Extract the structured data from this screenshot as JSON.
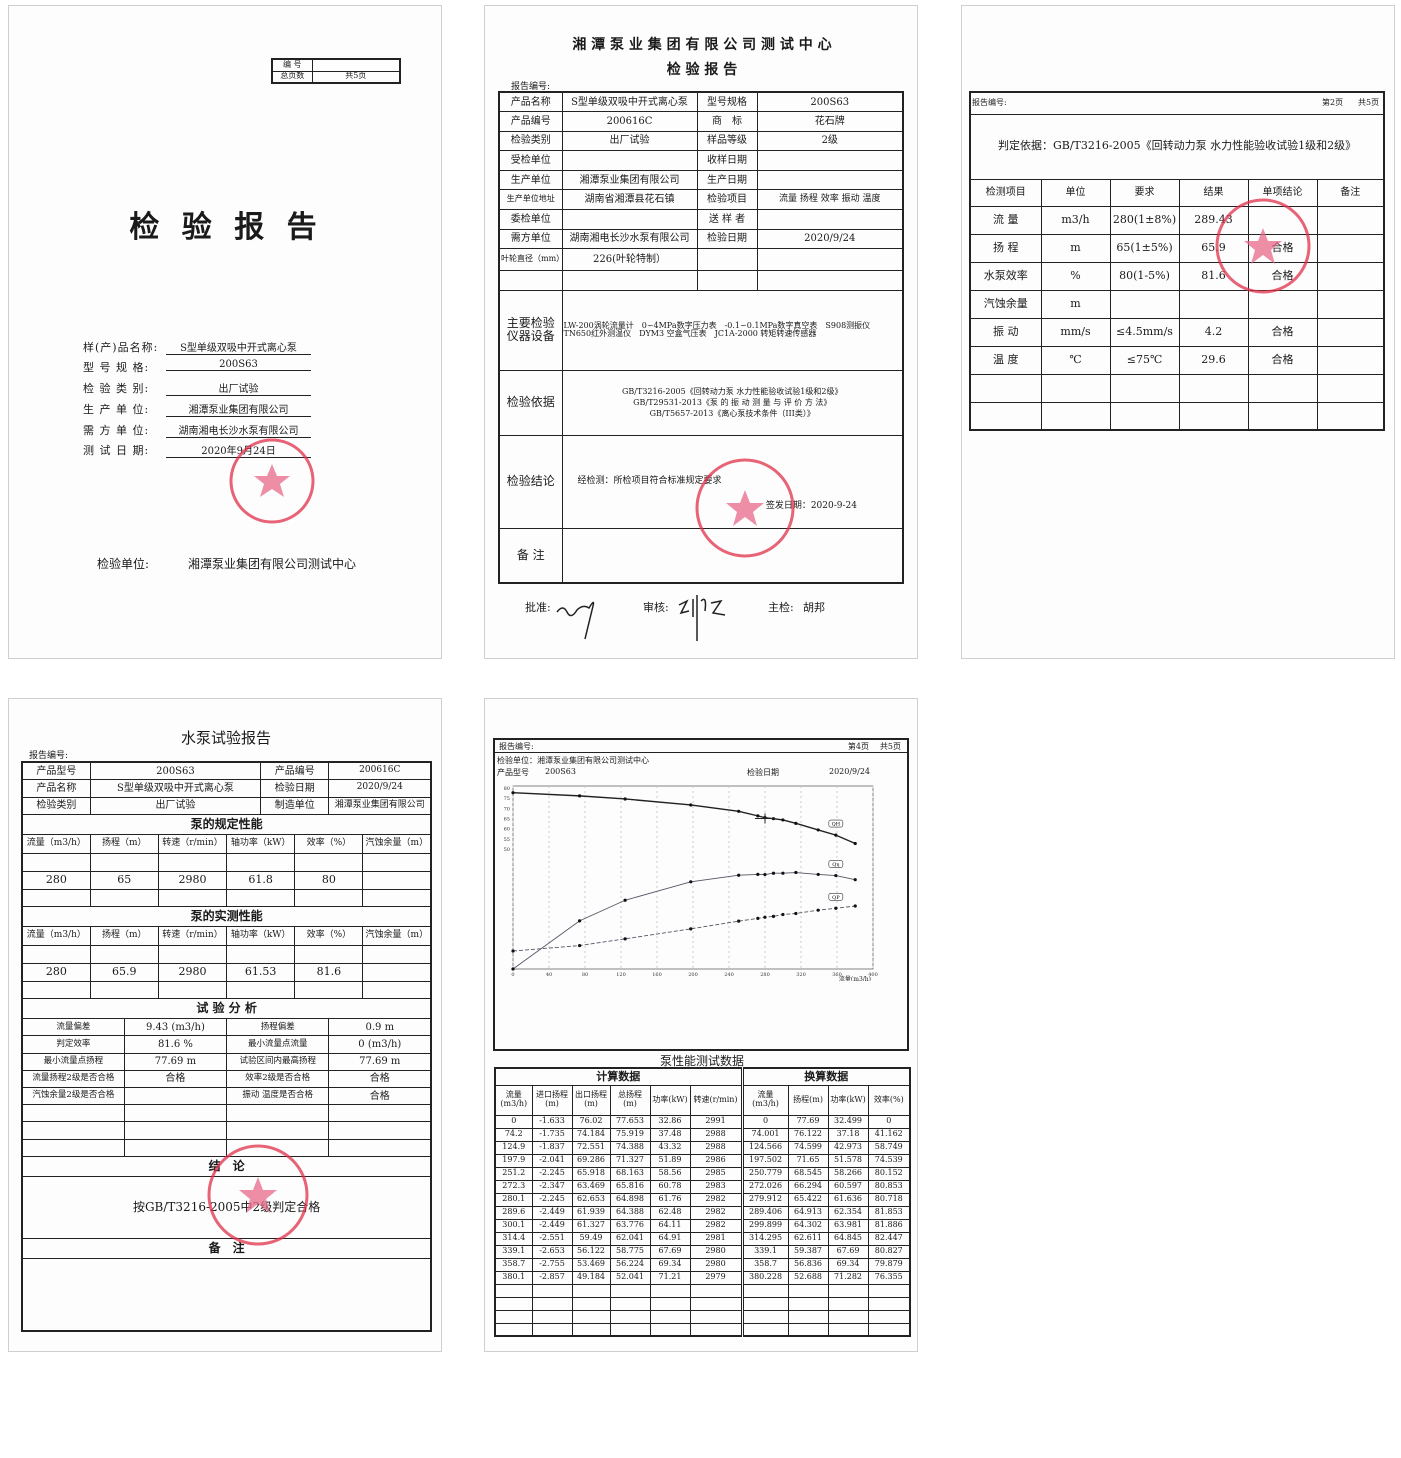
{
  "colors": {
    "stamp": "#e0304a",
    "ink": "#1a1a1a",
    "border": "#cfcfcf"
  },
  "page1": {
    "box": {
      "no_label": "编 号",
      "no_value": "",
      "pages_label": "总页数",
      "pages_value": "共5页"
    },
    "title": "检 验 报 告",
    "fields": [
      {
        "label": "样(产)品名称:",
        "value": "S型单级双吸中开式离心泵"
      },
      {
        "label": "型 号 规 格:",
        "value": "200S63"
      },
      {
        "label": "检 验 类 别:",
        "value": "出厂试验"
      },
      {
        "label": "生 产 单 位:",
        "value": "湘潭泵业集团有限公司"
      },
      {
        "label": "需 方 单 位:",
        "value": "湖南湘电长沙水泵有限公司"
      },
      {
        "label": "测 试 日 期:",
        "value": "2020年9月24日"
      }
    ],
    "unit_label": "检验单位:",
    "unit_value": "湘潭泵业集团有限公司测试中心"
  },
  "page2": {
    "header": "湘 潭 泵 业 集 团 有 限 公 司 测 试 中 心",
    "subheader": "检 验 报 告",
    "report_no_label": "报告编号:",
    "info_rows": [
      [
        "产品名称",
        "S型单级双吸中开式离心泵",
        "型号规格",
        "200S63"
      ],
      [
        "产品编号",
        "200616C",
        "商　标",
        "花石牌"
      ],
      [
        "检验类别",
        "出厂试验",
        "样品等级",
        "2级"
      ],
      [
        "受检单位",
        "",
        "收样日期",
        ""
      ],
      [
        "生产单位",
        "湘潭泵业集团有限公司",
        "生产日期",
        ""
      ],
      [
        "生产单位地址",
        "湖南省湘潭县花石镇",
        "检验项目",
        "流量 扬程 效率 振动 温度"
      ],
      [
        "委检单位",
        "",
        "送 样 者",
        ""
      ],
      [
        "需方单位",
        "湖南湘电长沙水泵有限公司",
        "检验日期",
        "2020/9/24"
      ],
      [
        "叶轮直径（mm）",
        "226(叶轮特制）",
        "",
        ""
      ],
      [
        "",
        "",
        "",
        ""
      ]
    ],
    "equipment_label": "主要检验仪器设备",
    "equipment_lines": [
      "LW-200涡轮流量计　0∽4MPa数字压力表　-0.1∽0.1MPa数字真空表　S908测振仪",
      "TN650红外测温仪　DYM3 空盒气压表　JC1A-2000 转矩转速传感器"
    ],
    "basis_label": "检验依据",
    "basis_lines": [
      "GB/T3216-2005《回转动力泵 水力性能验收试验1级和2级》",
      "GB/T29531-2013《泵 的 振 动 测 量 与 评 价 方 法》",
      "GB/T5657-2013《离心泵技术条件（III类）》"
    ],
    "conclusion_label": "检验结论",
    "conclusion_text": "经检测：所检项目符合标准规定要求",
    "issue_date": "签发日期：2020-9-24",
    "remarks_label": "备 注",
    "approve_label": "批准:",
    "review_label": "审核:",
    "inspector_label": "主检:",
    "inspector_name": "胡邦"
  },
  "page3": {
    "report_no_label": "报告编号:",
    "page_no": "第2页",
    "total_pages": "共5页",
    "basis": "判定依据：GB/T3216-2005《回转动力泵 水力性能验收试验1级和2级》",
    "headers": [
      "检测项目",
      "单位",
      "要求",
      "结果",
      "单项结论",
      "备注"
    ],
    "rows": [
      [
        "流 量",
        "m3/h",
        "280(1±8%)",
        "289.43",
        "",
        ""
      ],
      [
        "扬 程",
        "m",
        "65(1±5%)",
        "65.9",
        "合格",
        ""
      ],
      [
        "水泵效率",
        "%",
        "80(1-5%)",
        "81.6",
        "合格",
        ""
      ],
      [
        "汽蚀余量",
        "m",
        "",
        "",
        "",
        ""
      ],
      [
        "振 动",
        "mm/s",
        "≤4.5mm/s",
        "4.2",
        "合格",
        ""
      ],
      [
        "温 度",
        "℃",
        "≤75℃",
        "29.6",
        "合格",
        ""
      ],
      [
        "",
        "",
        "",
        "",
        "",
        ""
      ],
      [
        "",
        "",
        "",
        "",
        "",
        ""
      ]
    ]
  },
  "page4": {
    "title": "水泵试验报告",
    "report_no_label": "报告编号:",
    "info_rows": [
      [
        "产品型号",
        "200S63",
        "产品编号",
        "200616C"
      ],
      [
        "产品名称",
        "S型单级双吸中开式离心泵",
        "检验日期",
        "2020/9/24"
      ],
      [
        "检验类别",
        "出厂试验",
        "制造单位",
        "湘潭泵业集团有限公司"
      ]
    ],
    "rated_title": "泵的规定性能",
    "perf_headers": [
      "流量（m3/h）",
      "扬程（m）",
      "转速（r/min）",
      "轴功率（kW）",
      "效率（%）",
      "汽蚀余量（m）"
    ],
    "rated_rows": [
      [
        "",
        "",
        "",
        "",
        "",
        ""
      ],
      [
        "280",
        "65",
        "2980",
        "61.8",
        "80",
        ""
      ],
      [
        "",
        "",
        "",
        "",
        "",
        ""
      ]
    ],
    "measured_title": "泵的实测性能",
    "measured_rows": [
      [
        "",
        "",
        "",
        "",
        "",
        ""
      ],
      [
        "280",
        "65.9",
        "2980",
        "61.53",
        "81.6",
        ""
      ],
      [
        "",
        "",
        "",
        "",
        "",
        ""
      ]
    ],
    "analysis_title": "试 验 分 析",
    "analysis_rows": [
      [
        "流量偏差",
        "9.43 (m3/h)",
        "扬程偏差",
        "0.9 m"
      ],
      [
        "判定效率",
        "81.6 %",
        "最小流量点流量",
        "0 (m3/h)"
      ],
      [
        "最小流量点扬程",
        "77.69 m",
        "试验区间内最高扬程",
        "77.69 m"
      ],
      [
        "流量扬程2级是否合格",
        "合格",
        "效率2级是否合格",
        "合格"
      ],
      [
        "汽蚀余量2级是否合格",
        "",
        "振动 温度是否合格",
        "合格"
      ],
      [
        "",
        "",
        "",
        ""
      ],
      [
        "",
        "",
        "",
        ""
      ],
      [
        "",
        "",
        "",
        ""
      ]
    ],
    "conclusion_title": "结　论",
    "conclusion_text": "按GB/T3216-2005中2级判定合格",
    "remarks_title": "备　注"
  },
  "page5": {
    "report_no_label": "报告编号:",
    "page_no": "第4页",
    "total_pages": "共5页",
    "unit_line": "检验单位：湘潭泵业集团有限公司测试中心",
    "model_label": "产品型号",
    "model_value": "200S63",
    "date_label": "检验日期",
    "date_value": "2020/9/24",
    "table_title": "泵性能测试数据",
    "calc_title": "计算数据",
    "conv_title": "换算数据",
    "calc_headers": [
      "流量(m3/h)",
      "进口扬程(m)",
      "出口扬程(m)",
      "总扬程(m)",
      "功率(kW)",
      "转速(r/min)"
    ],
    "conv_headers": [
      "流量(m3/h)",
      "扬程(m)",
      "功率(kW)",
      "效率(%)"
    ],
    "rows": [
      [
        "0",
        "-1.633",
        "76.02",
        "77.653",
        "32.86",
        "2991",
        "0",
        "77.69",
        "32.499",
        "0"
      ],
      [
        "74.2",
        "-1.735",
        "74.184",
        "75.919",
        "37.48",
        "2988",
        "74.001",
        "76.122",
        "37.18",
        "41.162"
      ],
      [
        "124.9",
        "-1.837",
        "72.551",
        "74.388",
        "43.32",
        "2988",
        "124.566",
        "74.599",
        "42.973",
        "58.749"
      ],
      [
        "197.9",
        "-2.041",
        "69.286",
        "71.327",
        "51.89",
        "2986",
        "197.502",
        "71.65",
        "51.578",
        "74.539"
      ],
      [
        "251.2",
        "-2.245",
        "65.918",
        "68.163",
        "58.56",
        "2985",
        "250.779",
        "68.545",
        "58.266",
        "80.152"
      ],
      [
        "272.3",
        "-2.347",
        "63.469",
        "65.816",
        "60.78",
        "2983",
        "272.026",
        "66.294",
        "60.597",
        "80.853"
      ],
      [
        "280.1",
        "-2.245",
        "62.653",
        "64.898",
        "61.76",
        "2982",
        "279.912",
        "65.422",
        "61.636",
        "80.718"
      ],
      [
        "289.6",
        "-2.449",
        "61.939",
        "64.388",
        "62.48",
        "2982",
        "289.406",
        "64.913",
        "62.354",
        "81.853"
      ],
      [
        "300.1",
        "-2.449",
        "61.327",
        "63.776",
        "64.11",
        "2982",
        "299.899",
        "64.302",
        "63.981",
        "81.886"
      ],
      [
        "314.4",
        "-2.551",
        "59.49",
        "62.041",
        "64.91",
        "2981",
        "314.295",
        "62.611",
        "64.845",
        "82.447"
      ],
      [
        "339.1",
        "-2.653",
        "56.122",
        "58.775",
        "67.69",
        "2980",
        "339.1",
        "59.387",
        "67.69",
        "80.827"
      ],
      [
        "358.7",
        "-2.755",
        "53.469",
        "56.224",
        "69.34",
        "2980",
        "358.7",
        "56.836",
        "69.34",
        "79.879"
      ],
      [
        "380.1",
        "-2.857",
        "49.184",
        "52.041",
        "71.21",
        "2979",
        "380.228",
        "52.688",
        "71.282",
        "76.355"
      ],
      [
        "",
        "",
        "",
        "",
        "",
        "",
        "",
        "",
        "",
        ""
      ],
      [
        "",
        "",
        "",
        "",
        "",
        "",
        "",
        "",
        "",
        ""
      ],
      [
        "",
        "",
        "",
        "",
        "",
        "",
        "",
        "",
        "",
        ""
      ],
      [
        "",
        "",
        "",
        "",
        "",
        "",
        "",
        "",
        "",
        ""
      ]
    ]
  },
  "chart_data": {
    "type": "line",
    "xlabel": "流量(m3/h)",
    "xlim": [
      0,
      400
    ],
    "xticks": [
      0,
      40,
      80,
      120,
      160,
      200,
      240,
      280,
      320,
      360,
      400
    ],
    "head_axis": {
      "ylim": [
        50,
        80
      ],
      "ticks": [
        80,
        75,
        70,
        65,
        60,
        55,
        50
      ]
    },
    "x": [
      0,
      74.001,
      124.566,
      197.502,
      250.779,
      272.026,
      279.912,
      289.406,
      299.899,
      314.295,
      339.1,
      358.7,
      380.228
    ],
    "series": [
      {
        "name": "QH",
        "values": [
          77.69,
          76.122,
          74.599,
          71.65,
          68.545,
          66.294,
          65.422,
          64.913,
          64.302,
          62.611,
          59.387,
          56.836,
          52.688
        ]
      },
      {
        "name": "Qη",
        "values": [
          0,
          41.162,
          58.749,
          74.539,
          80.152,
          80.853,
          80.718,
          81.853,
          81.886,
          82.447,
          80.827,
          79.879,
          76.355
        ]
      },
      {
        "name": "QP",
        "values": [
          32.499,
          37.18,
          42.973,
          51.578,
          58.266,
          60.597,
          61.636,
          62.354,
          63.981,
          64.845,
          67.69,
          69.34,
          71.282
        ]
      }
    ],
    "grid": true
  }
}
